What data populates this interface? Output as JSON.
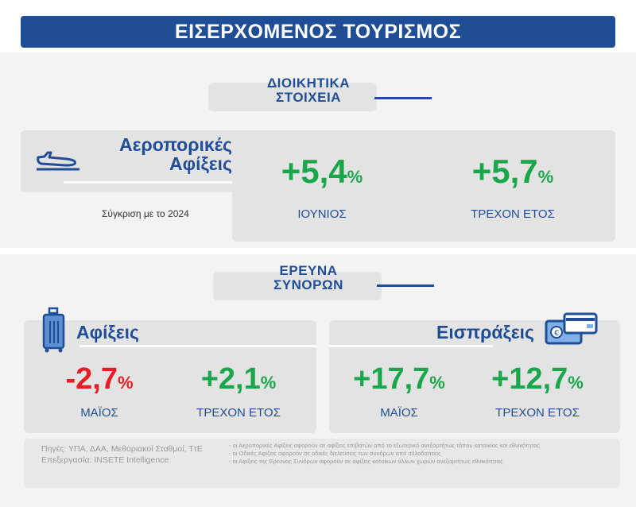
{
  "header": {
    "title": "ΕΙΣΕΡΧΟΜΕΝΟΣ ΤΟΥΡΙΣΜΟΣ"
  },
  "admin": {
    "section_line1": "ΔΙΟΙΚΗΤΙΚΑ",
    "section_line2": "ΣΤΟΙΧΕΙΑ",
    "title_line1": "Αεροπορικές",
    "title_line2": "Αφίξεις",
    "comparison": "Σύγκριση με το 2024",
    "stats": [
      {
        "value": "+5,4",
        "unit": "%",
        "label": "ΙΟΥΝΙΟΣ"
      },
      {
        "value": "+5,7",
        "unit": "%",
        "label": "ΤΡΕΧΟΝ ΕΤΟΣ"
      }
    ]
  },
  "border": {
    "section_line1": "ΕΡΕΥΝΑ",
    "section_line2": "ΣΥΝΟΡΩΝ",
    "arrivals": {
      "title": "Αφίξεις",
      "stats": [
        {
          "value": "-2,7",
          "unit": "%",
          "label": "ΜΑΪΟΣ"
        },
        {
          "value": "+2,1",
          "unit": "%",
          "label": "ΤΡΕΧΟΝ ΕΤΟΣ"
        }
      ]
    },
    "receipts": {
      "title": "Εισπράξεις",
      "stats": [
        {
          "value": "+17,7",
          "unit": "%",
          "label": "ΜΑΪΟΣ"
        },
        {
          "value": "+12,7",
          "unit": "%",
          "label": "ΤΡΕΧΟΝ ΕΤΟΣ"
        }
      ]
    }
  },
  "footer": {
    "sources": "Πηγές: ΥΠΑ, ΔΑΑ, Μεθοριακοί Σταθμοί, ΤτΕ",
    "processing": "Επεξεργασία: INSETE Intelligence",
    "notes": [
      "- οι Αεροπορικές Αφίξεις αφορούν σε αφίξεις επιβατών από το εξωτερικό ανεξαρτήτως τόπου κατοικίας και εθνικότητας",
      "- οι Οδικές Αφίξεις αφορούν σε οδικές διελεύσεις των συνόρων από αλλοδαπούς",
      "- οι Αφίξεις της Ερευνας Συνόρων αφορούν σε αφίξεις κατοίκων άλλων χωρών ανεξαρτήτως εθνικότητας"
    ]
  },
  "colors": {
    "brand": "#1f4e96",
    "positive": "#1aa64a",
    "negative": "#e31e24"
  }
}
